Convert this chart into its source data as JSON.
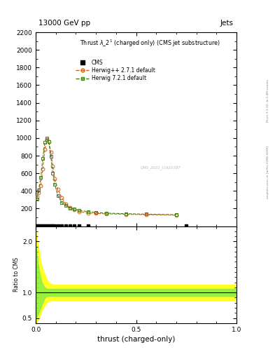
{
  "title_top": "13000 GeV pp",
  "title_right": "Jets",
  "plot_title": "Thrust $\\lambda\\_2^1$ (charged only) (CMS jet substructure)",
  "xlabel": "thrust (charged-only)",
  "ylabel_ratio": "Ratio to CMS",
  "right_label": "Rivet 3.1.10, ≥ 3.4M events",
  "right_label2": "mcplots.cern.ch [arXiv:1306.3436]",
  "watermark": "CMS_2021_I1920187",
  "herwig_pp_x": [
    0.005,
    0.015,
    0.025,
    0.035,
    0.045,
    0.055,
    0.065,
    0.075,
    0.085,
    0.095,
    0.11,
    0.13,
    0.15,
    0.17,
    0.19,
    0.215,
    0.26,
    0.3,
    0.35,
    0.45,
    0.55,
    0.7
  ],
  "herwig_pp_y": [
    330,
    380,
    460,
    650,
    870,
    980,
    960,
    840,
    680,
    540,
    420,
    320,
    250,
    210,
    185,
    165,
    150,
    145,
    140,
    135,
    130,
    125
  ],
  "herwig72_x": [
    0.005,
    0.015,
    0.025,
    0.035,
    0.045,
    0.055,
    0.065,
    0.075,
    0.085,
    0.095,
    0.11,
    0.13,
    0.15,
    0.17,
    0.19,
    0.215,
    0.26,
    0.3,
    0.35,
    0.45,
    0.55,
    0.7
  ],
  "herwig72_y": [
    310,
    410,
    550,
    770,
    950,
    1000,
    960,
    790,
    600,
    470,
    350,
    265,
    235,
    205,
    195,
    180,
    165,
    155,
    148,
    142,
    136,
    130
  ],
  "cms_x": [
    0.005,
    0.015,
    0.025,
    0.035,
    0.045,
    0.055,
    0.065,
    0.075,
    0.085,
    0.095,
    0.11,
    0.13,
    0.15,
    0.17,
    0.19,
    0.215,
    0.26,
    0.75
  ],
  "ylim_main": [
    0,
    2200
  ],
  "yticks_main": [
    200,
    400,
    600,
    800,
    1000,
    1200,
    1400,
    1600,
    1800,
    2000,
    2200
  ],
  "ylim_ratio": [
    0.4,
    2.3
  ],
  "yticks_ratio": [
    0.5,
    1.0,
    2.0
  ],
  "xlim": [
    0.0,
    1.0
  ],
  "xticks": [
    0.0,
    0.5,
    1.0
  ],
  "color_herwig_pp": "#d46010",
  "color_herwig72": "#408010",
  "color_cms": "#000000",
  "band_yellow_upper": 1.15,
  "band_yellow_lower": 0.85,
  "band_green_upper": 1.07,
  "band_green_lower": 0.93,
  "ratio_yellow_x": [
    0.0,
    0.005,
    0.01,
    0.02,
    0.03,
    0.04,
    0.05,
    0.06,
    0.07,
    0.08,
    0.09,
    0.12,
    0.2,
    1.0
  ],
  "ratio_yellow_upper": [
    2.2,
    2.1,
    1.95,
    1.7,
    1.5,
    1.4,
    1.3,
    1.22,
    1.18,
    1.16,
    1.15,
    1.15,
    1.15,
    1.15
  ],
  "ratio_yellow_lower": [
    0.4,
    0.42,
    0.46,
    0.55,
    0.65,
    0.72,
    0.78,
    0.82,
    0.84,
    0.85,
    0.85,
    0.85,
    0.85,
    0.85
  ],
  "ratio_green_x": [
    0.0,
    0.005,
    0.01,
    0.02,
    0.03,
    0.04,
    0.05,
    0.06,
    0.07,
    0.08,
    0.09,
    0.12,
    0.2,
    1.0
  ],
  "ratio_green_upper": [
    1.9,
    1.8,
    1.6,
    1.35,
    1.2,
    1.12,
    1.08,
    1.07,
    1.07,
    1.07,
    1.07,
    1.07,
    1.07,
    1.07
  ],
  "ratio_green_lower": [
    0.5,
    0.52,
    0.56,
    0.66,
    0.76,
    0.86,
    0.92,
    0.93,
    0.93,
    0.93,
    0.93,
    0.93,
    0.93,
    0.93
  ]
}
